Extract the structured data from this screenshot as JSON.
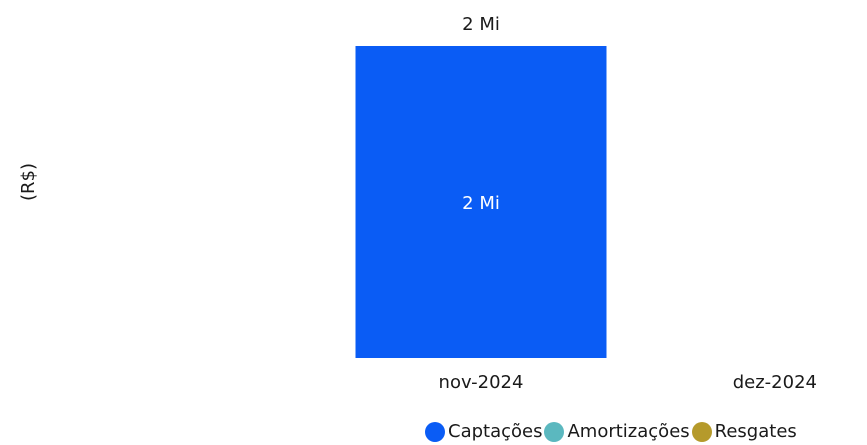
{
  "chart_data": {
    "type": "bar",
    "stacked": true,
    "ylabel": "(R$)",
    "categories": [
      "nov-2024",
      "dez-2024"
    ],
    "series": [
      {
        "name": "Captações",
        "color": "#0a5cf5",
        "values": [
          2,
          0
        ],
        "value_labels": [
          "2 Mi",
          ""
        ]
      },
      {
        "name": "Amortizações",
        "color": "#5bb8bf",
        "values": [
          0,
          0
        ],
        "value_labels": [
          "",
          ""
        ]
      },
      {
        "name": "Resgates",
        "color": "#b59a2b",
        "values": [
          0,
          0
        ],
        "value_labels": [
          "",
          ""
        ]
      }
    ],
    "totals": [
      2,
      0
    ],
    "total_labels": [
      "2 Mi",
      ""
    ],
    "ylim": [
      0,
      2
    ],
    "grid": false,
    "legend_position": "bottom"
  }
}
